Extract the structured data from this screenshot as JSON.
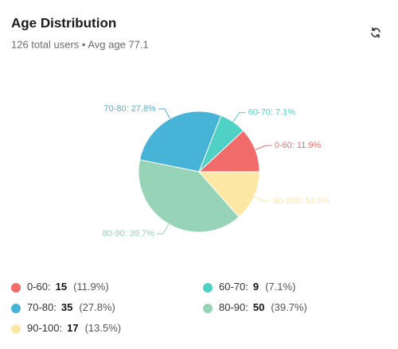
{
  "chart_data": {
    "type": "pie",
    "title": "Age Distribution",
    "subtitle": "126 total users • Avg age 77.1",
    "labels": [
      "0-60:",
      "60-70:",
      "70-80:",
      "80-90:",
      "90-100:"
    ],
    "values": [
      15,
      9,
      35,
      50,
      17
    ],
    "percentages": [
      11.9,
      7.1,
      27.8,
      39.7,
      13.5
    ],
    "percent_labels": [
      "(11.9%)",
      "(7.1%)",
      "(27.8%)",
      "(39.7%)",
      "(13.5%)"
    ],
    "slice_labels": [
      "0-60: 11.9%",
      "60-70: 7.1%",
      "70-80: 27.8%",
      "80-90: 39.7%",
      "90-100: 13.5%"
    ],
    "colors": [
      "#f26b6b",
      "#4fd1c5",
      "#47b3d6",
      "#97d3b6",
      "#fde7a5"
    ]
  }
}
